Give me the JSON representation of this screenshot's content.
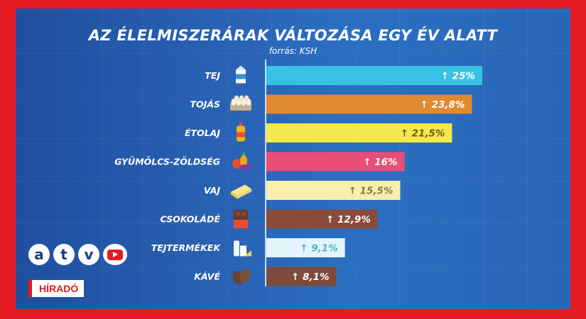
{
  "chart_data": {
    "type": "bar",
    "orientation": "horizontal",
    "title": "AZ ÉLELMISZERÁRAK VÁLTOZÁSA EGY ÉV ALATT",
    "subtitle": "forrás: KSH",
    "categories": [
      "TEJ",
      "TOJÁS",
      "ÉTOLAJ",
      "GYÜMÖLCS-ZÖLDSÉG",
      "VAJ",
      "CSOKOLÁDÉ",
      "TEJTERMÉKEK",
      "KÁVÉ"
    ],
    "values": [
      25,
      23.8,
      21.5,
      16,
      15.5,
      12.9,
      9.1,
      8.1
    ],
    "value_labels": [
      "25%",
      "23,8%",
      "21,5%",
      "16%",
      "15,5%",
      "12,9%",
      "9,1%",
      "8,1%"
    ],
    "value_prefix": "↑",
    "bar_colors": [
      "#36c3e3",
      "#e08a32",
      "#f3e84c",
      "#e84e78",
      "#f8eeae",
      "#8a4b3b",
      "#e3f5fb",
      "#7d4a3c"
    ],
    "label_colors": [
      "#ffffff",
      "#ffffff",
      "#6b5a10",
      "#ffffff",
      "#8a7b3e",
      "#ffffff",
      "#4fb3d4",
      "#ffffff"
    ],
    "icons": [
      "milk-carton-icon",
      "egg-tray-icon",
      "oil-bottle-icon",
      "fruit-vegetable-icon",
      "butter-icon",
      "chocolate-icon",
      "dairy-products-icon",
      "coffee-bean-icon"
    ],
    "xlim": [
      0,
      25
    ],
    "grid": false,
    "legend": "none"
  },
  "branding": {
    "logo_letters": [
      "a",
      "t",
      "v"
    ],
    "youtube_icon": "youtube-play-icon",
    "show_name": "HÍRADÓ",
    "accent_color": "#e31b23"
  }
}
